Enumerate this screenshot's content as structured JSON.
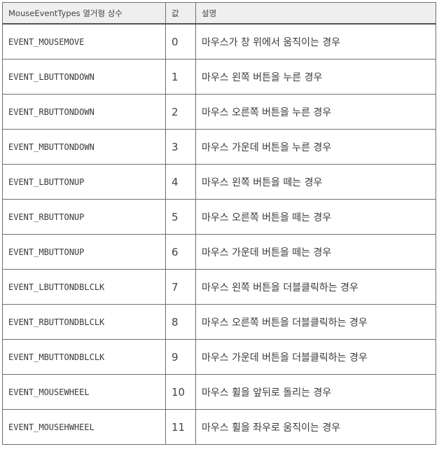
{
  "table": {
    "headers": {
      "name": "MouseEventTypes 열거형 상수",
      "value": "값",
      "description": "설명"
    },
    "rows": [
      {
        "name": "EVENT_MOUSEMOVE",
        "value": "0",
        "description": "마우스가 창 위에서 움직이는 경우"
      },
      {
        "name": "EVENT_LBUTTONDOWN",
        "value": "1",
        "description": "마우스 왼쪽 버튼을 누른 경우"
      },
      {
        "name": "EVENT_RBUTTONDOWN",
        "value": "2",
        "description": "마우스 오른쪽 버튼을 누른 경우"
      },
      {
        "name": "EVENT_MBUTTONDOWN",
        "value": "3",
        "description": "마우스 가운데 버튼을 누른 경우"
      },
      {
        "name": "EVENT_LBUTTONUP",
        "value": "4",
        "description": "마우스 왼쪽 버튼을 떼는 경우"
      },
      {
        "name": "EVENT_RBUTTONUP",
        "value": "5",
        "description": "마우스 오른쪽 버튼을 떼는 경우"
      },
      {
        "name": "EVENT_MBUTTONUP",
        "value": "6",
        "description": "마우스 가운데 버튼을 떼는 경우"
      },
      {
        "name": "EVENT_LBUTTONDBLCLK",
        "value": "7",
        "description": "마우스 왼쪽 버튼을 더블클릭하는 경우"
      },
      {
        "name": "EVENT_RBUTTONDBLCLK",
        "value": "8",
        "description": "마우스 오른쪽 버튼을 더블클릭하는 경우"
      },
      {
        "name": "EVENT_MBUTTONDBLCLK",
        "value": "9",
        "description": "마우스 가운데 버튼을 더블클릭하는 경우"
      },
      {
        "name": "EVENT_MOUSEWHEEL",
        "value": "10",
        "description": "마우스 휠을 앞뒤로 돌리는 경우"
      },
      {
        "name": "EVENT_MOUSEHWHEEL",
        "value": "11",
        "description": "마우스 휠을 좌우로 움직이는 경우"
      }
    ]
  }
}
